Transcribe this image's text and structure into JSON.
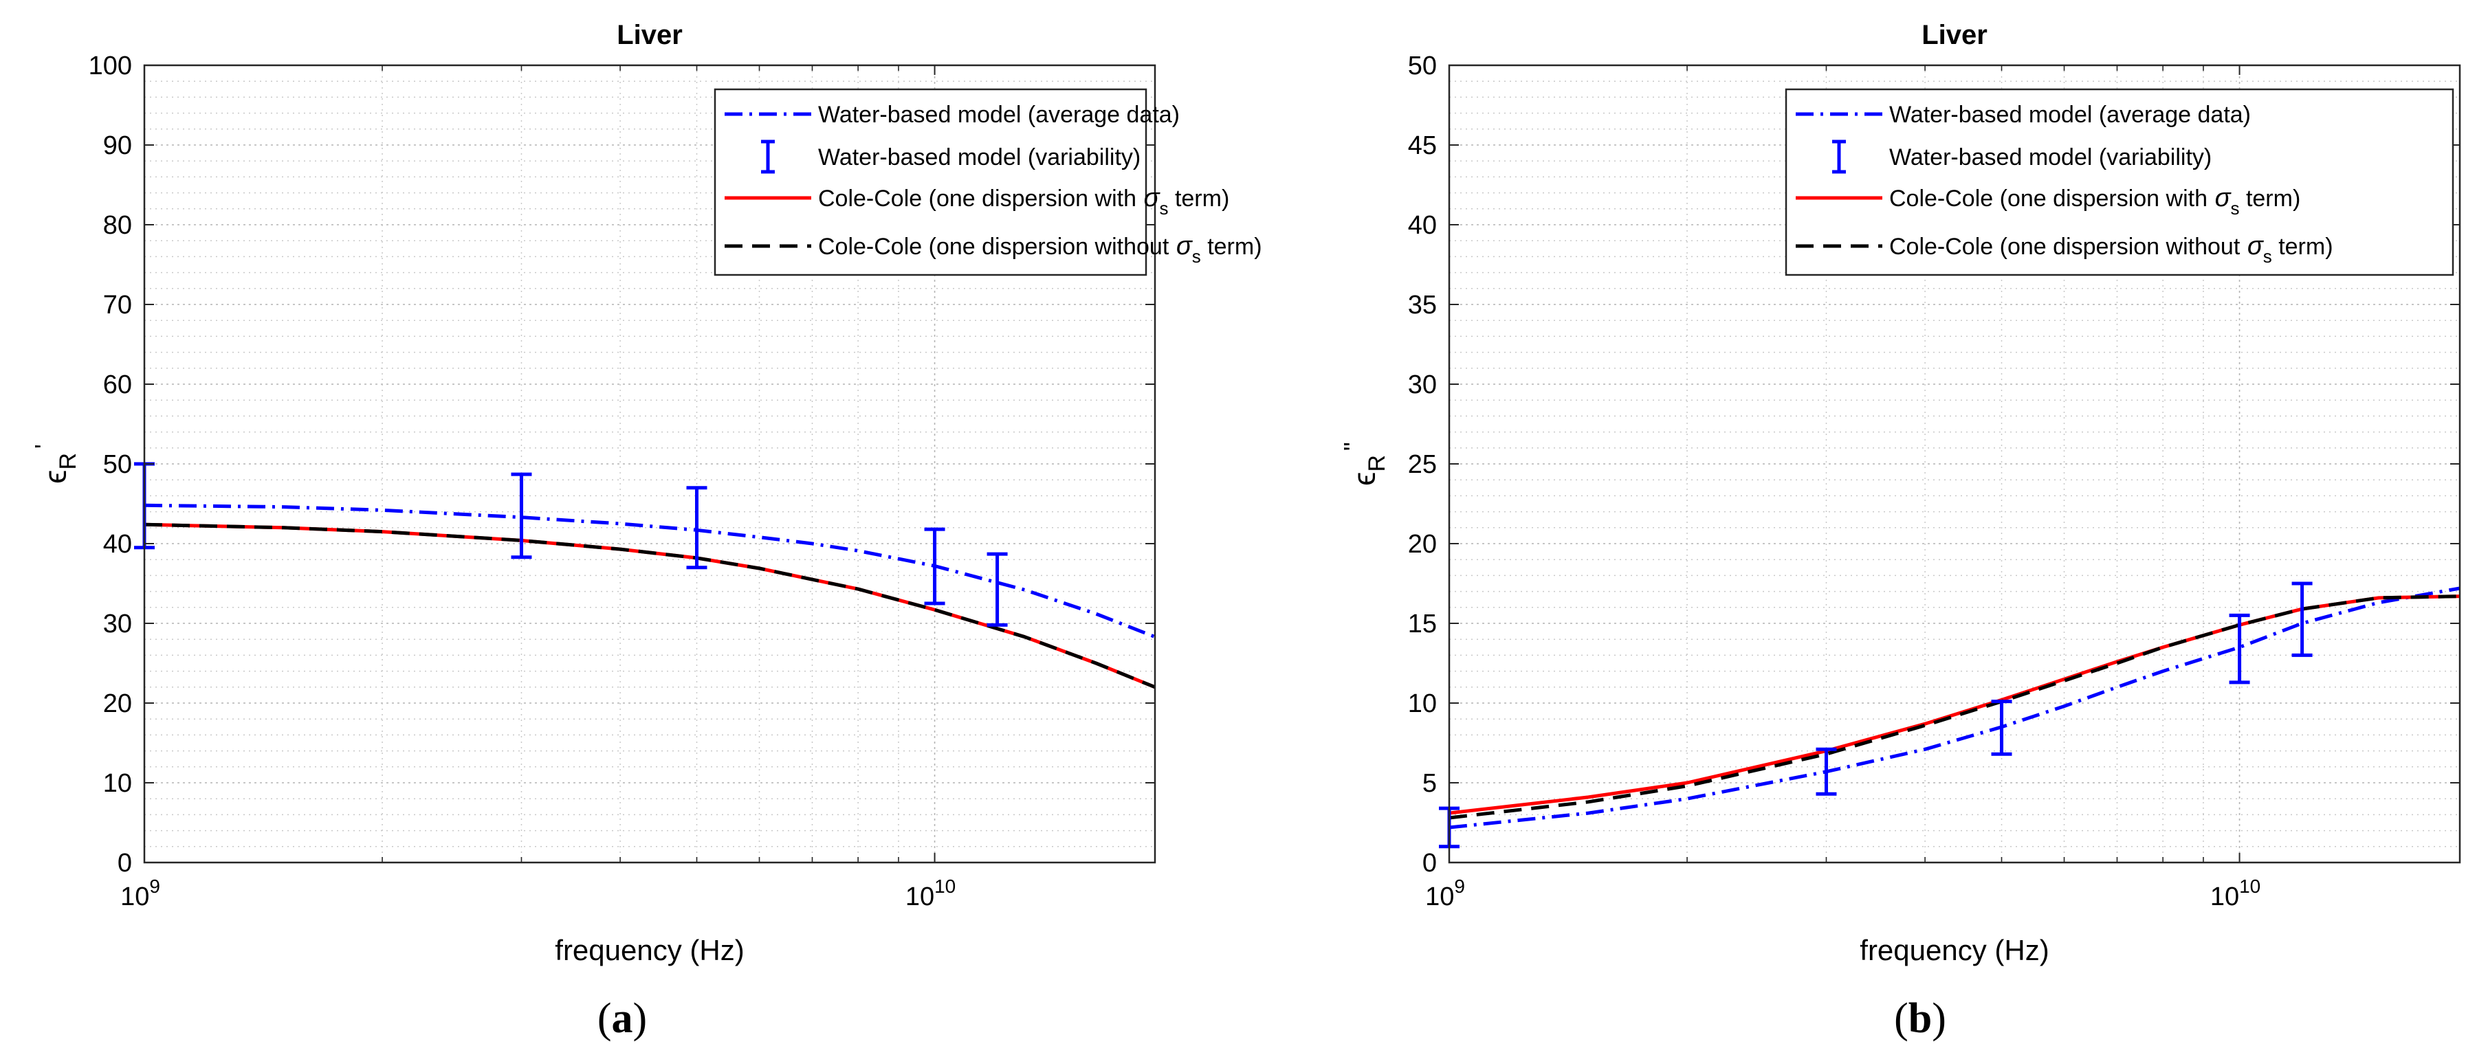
{
  "chart_data": [
    {
      "type": "line",
      "panel_label": "a",
      "title": "Liver",
      "xlabel": "frequency (Hz)",
      "ylabel": "ϵR '",
      "ylabel_base": "ϵ",
      "ylabel_sub": "R",
      "ylabel_sup": "'",
      "xscale": "log",
      "xlim": [
        1000000000.0,
        19000000000.0
      ],
      "ylim": [
        0,
        100
      ],
      "yticks": [
        0,
        10,
        20,
        30,
        40,
        50,
        60,
        70,
        80,
        90,
        100
      ],
      "xticks": [
        {
          "value": 1000000000.0,
          "base": "10",
          "exp": "9"
        },
        {
          "value": 10000000000.0,
          "base": "10",
          "exp": "10"
        }
      ],
      "grid": true,
      "legend_position": "top-right",
      "legend": [
        {
          "label": "Water-based model (average data)",
          "style": "dashdot",
          "color": "#0000ff"
        },
        {
          "label": "Water-based model (variability)",
          "style": "errorbar",
          "color": "#0000ff"
        },
        {
          "label": "Cole-Cole (one dispersion with",
          "symbol": "σ",
          "sub": "s",
          "suffix": "term)",
          "style": "solid",
          "color": "#ff0000"
        },
        {
          "label": "Cole-Cole (one dispersion without",
          "symbol": "σ",
          "sub": "s",
          "suffix": "term)",
          "style": "dashed",
          "color": "#000000"
        }
      ],
      "series": [
        {
          "name": "Water-based model (average data)",
          "color": "#0000ff",
          "style": "dashdot",
          "x": [
            1000000000.0,
            1500000000.0,
            2000000000.0,
            3000000000.0,
            4000000000.0,
            5000000000.0,
            6000000000.0,
            7000000000.0,
            8000000000.0,
            10000000000.0,
            13000000000.0,
            16000000000.0,
            19000000000.0
          ],
          "y": [
            44.8,
            44.6,
            44.2,
            43.3,
            42.5,
            41.7,
            40.8,
            40.0,
            39.1,
            37.2,
            34.2,
            31.2,
            28.3
          ]
        },
        {
          "name": "Cole-Cole (one dispersion with σs term)",
          "color": "#ff0000",
          "style": "solid",
          "x": [
            1000000000.0,
            1500000000.0,
            2000000000.0,
            3000000000.0,
            4000000000.0,
            5000000000.0,
            6000000000.0,
            7000000000.0,
            8000000000.0,
            10000000000.0,
            13000000000.0,
            16000000000.0,
            19000000000.0
          ],
          "y": [
            42.4,
            42.0,
            41.5,
            40.4,
            39.3,
            38.2,
            36.9,
            35.5,
            34.3,
            31.7,
            28.3,
            25.0,
            22.0
          ]
        },
        {
          "name": "Cole-Cole (one dispersion without σs term)",
          "color": "#000000",
          "style": "dashed",
          "x": [
            1000000000.0,
            1500000000.0,
            2000000000.0,
            3000000000.0,
            4000000000.0,
            5000000000.0,
            6000000000.0,
            7000000000.0,
            8000000000.0,
            10000000000.0,
            13000000000.0,
            16000000000.0,
            19000000000.0
          ],
          "y": [
            42.4,
            42.0,
            41.5,
            40.4,
            39.3,
            38.2,
            36.9,
            35.5,
            34.3,
            31.7,
            28.3,
            25.0,
            22.0
          ]
        }
      ],
      "errorbars": {
        "name": "Water-based model (variability)",
        "color": "#0000ff",
        "x": [
          1000000000.0,
          3000000000.0,
          5000000000.0,
          10000000000.0,
          12000000000.0
        ],
        "low": [
          39.5,
          38.3,
          37.0,
          32.5,
          29.8
        ],
        "high": [
          50.0,
          48.7,
          47.0,
          41.8,
          38.7
        ]
      }
    },
    {
      "type": "line",
      "panel_label": "b",
      "title": "Liver",
      "xlabel": "frequency (Hz)",
      "ylabel": "ϵR \"",
      "ylabel_base": "ϵ",
      "ylabel_sub": "R",
      "ylabel_sup": "\"",
      "xscale": "log",
      "xlim": [
        1000000000.0,
        19000000000.0
      ],
      "ylim": [
        0,
        50
      ],
      "yticks": [
        0,
        5,
        10,
        15,
        20,
        25,
        30,
        35,
        40,
        45,
        50
      ],
      "xticks": [
        {
          "value": 1000000000.0,
          "base": "10",
          "exp": "9"
        },
        {
          "value": 10000000000.0,
          "base": "10",
          "exp": "10"
        }
      ],
      "grid": true,
      "legend_position": "top-right",
      "legend": [
        {
          "label": "Water-based model (average data)",
          "style": "dashdot",
          "color": "#0000ff"
        },
        {
          "label": "Water-based model (variability)",
          "style": "errorbar",
          "color": "#0000ff"
        },
        {
          "label": "Cole-Cole (one dispersion with",
          "symbol": "σ",
          "sub": "s",
          "suffix": "term)",
          "style": "solid",
          "color": "#ff0000"
        },
        {
          "label": "Cole-Cole (one dispersion without",
          "symbol": "σ",
          "sub": "s",
          "suffix": "term)",
          "style": "dashed",
          "color": "#000000"
        }
      ],
      "series": [
        {
          "name": "Water-based model (average data)",
          "color": "#0000ff",
          "style": "dashdot",
          "x": [
            1000000000.0,
            1500000000.0,
            2000000000.0,
            3000000000.0,
            4000000000.0,
            5000000000.0,
            6000000000.0,
            7000000000.0,
            8000000000.0,
            10000000000.0,
            12000000000.0,
            15000000000.0,
            19000000000.0
          ],
          "y": [
            2.2,
            3.1,
            4.0,
            5.7,
            7.1,
            8.5,
            9.8,
            11.0,
            12.0,
            13.5,
            15.0,
            16.3,
            17.2
          ]
        },
        {
          "name": "Cole-Cole (one dispersion with σs term)",
          "color": "#ff0000",
          "style": "solid",
          "x": [
            1000000000.0,
            1500000000.0,
            2000000000.0,
            3000000000.0,
            4000000000.0,
            5000000000.0,
            6000000000.0,
            7000000000.0,
            8000000000.0,
            10000000000.0,
            12000000000.0,
            15000000000.0,
            19000000000.0
          ],
          "y": [
            3.1,
            4.1,
            5.0,
            7.0,
            8.7,
            10.2,
            11.5,
            12.6,
            13.5,
            14.9,
            15.9,
            16.6,
            16.7
          ]
        },
        {
          "name": "Cole-Cole (one dispersion without σs term)",
          "color": "#000000",
          "style": "dashed",
          "x": [
            1000000000.0,
            1500000000.0,
            2000000000.0,
            3000000000.0,
            4000000000.0,
            5000000000.0,
            6000000000.0,
            7000000000.0,
            8000000000.0,
            10000000000.0,
            12000000000.0,
            15000000000.0,
            19000000000.0
          ],
          "y": [
            2.8,
            3.8,
            4.8,
            6.8,
            8.6,
            10.1,
            11.4,
            12.5,
            13.5,
            14.9,
            15.9,
            16.6,
            16.7
          ]
        }
      ],
      "errorbars": {
        "name": "Water-based model (variability)",
        "color": "#0000ff",
        "x": [
          1000000000.0,
          3000000000.0,
          5000000000.0,
          10000000000.0,
          12000000000.0
        ],
        "low": [
          1.0,
          4.3,
          6.8,
          11.3,
          13.0
        ],
        "high": [
          3.4,
          7.1,
          10.1,
          15.5,
          17.5
        ]
      }
    }
  ]
}
